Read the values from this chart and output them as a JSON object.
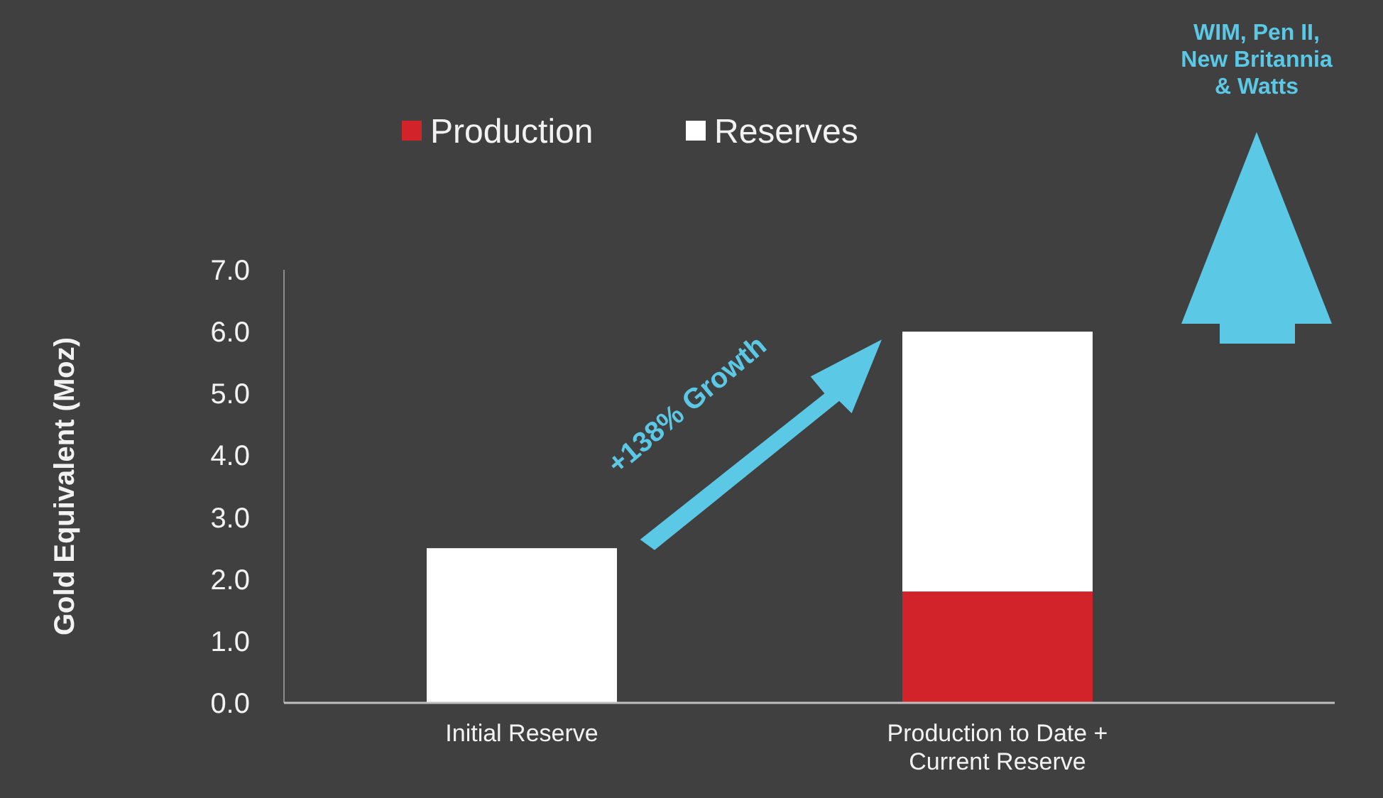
{
  "chart_data": {
    "type": "bar",
    "ylabel": "Gold Equivalent (Moz)",
    "categories": [
      "Initial Reserve",
      "Production to Date + Current Reserve"
    ],
    "stacked": true,
    "series": [
      {
        "name": "Production",
        "color": "#d2232a",
        "values": [
          0,
          1.8
        ]
      },
      {
        "name": "Reserves",
        "color": "#ffffff",
        "values": [
          2.5,
          4.2
        ]
      }
    ],
    "ylim": [
      0,
      7
    ],
    "yticks": [
      {
        "value": 0,
        "label": "0.0"
      },
      {
        "value": 1,
        "label": "1.0"
      },
      {
        "value": 2,
        "label": "2.0"
      },
      {
        "value": 3,
        "label": "3.0"
      },
      {
        "value": 4,
        "label": "4.0"
      },
      {
        "value": 5,
        "label": "5.0"
      },
      {
        "value": 6,
        "label": "6.0"
      },
      {
        "value": 7,
        "label": "7.0"
      }
    ],
    "grid": false,
    "legend": "top",
    "annotations": [
      "+138% Growth",
      "WIM, Pen II, New Britannia & Watts"
    ]
  }
}
